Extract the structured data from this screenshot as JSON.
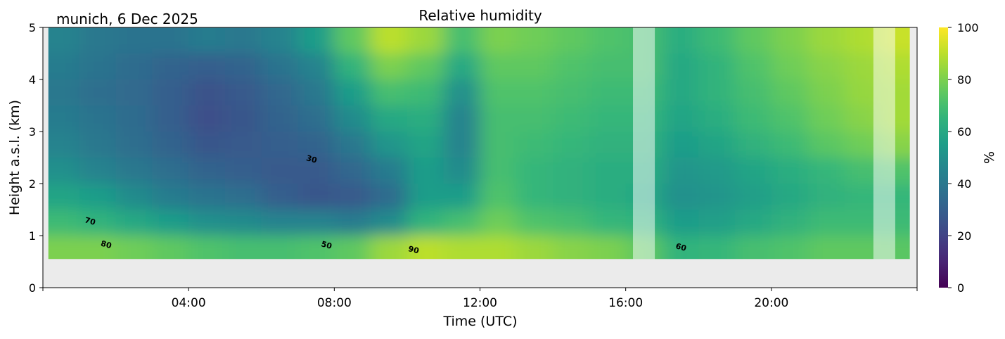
{
  "chart_data": {
    "type": "heatmap",
    "title": "Relative humidity",
    "subtitle": "munich, 6 Dec 2025",
    "xlabel": "Time (UTC)",
    "ylabel": "Height a.s.l. (km)",
    "xlim": [
      0,
      24
    ],
    "ylim": [
      0,
      5
    ],
    "xticks": [
      {
        "value": 4,
        "label": "04:00"
      },
      {
        "value": 8,
        "label": "08:00"
      },
      {
        "value": 12,
        "label": "12:00"
      },
      {
        "value": 16,
        "label": "16:00"
      },
      {
        "value": 20,
        "label": "20:00"
      }
    ],
    "yticks": [
      {
        "value": 0,
        "label": "0"
      },
      {
        "value": 1,
        "label": "1"
      },
      {
        "value": 2,
        "label": "2"
      },
      {
        "value": 3,
        "label": "3"
      },
      {
        "value": 4,
        "label": "4"
      },
      {
        "value": 5,
        "label": "5"
      }
    ],
    "colorbar": {
      "label": "%",
      "range": [
        0,
        100
      ],
      "colormap": "viridis",
      "ticks": [
        {
          "value": 0,
          "label": "0"
        },
        {
          "value": 20,
          "label": "20"
        },
        {
          "value": 40,
          "label": "40"
        },
        {
          "value": 60,
          "label": "60"
        },
        {
          "value": 80,
          "label": "80"
        },
        {
          "value": 100,
          "label": "100"
        }
      ]
    },
    "data_extent": {
      "time": [
        0.15,
        23.8
      ],
      "height": [
        0.55,
        5
      ]
    },
    "missing_periods": [
      [
        16.2,
        16.8
      ],
      [
        22.8,
        23.4
      ]
    ],
    "grid": false,
    "time_hours": [
      0.5,
      1.5,
      2.5,
      3.5,
      4.5,
      5.5,
      6.5,
      7.5,
      8.5,
      9.5,
      10.5,
      11.5,
      12.5,
      13.5,
      14.5,
      15.5,
      16.5,
      17.5,
      18.5,
      19.5,
      20.5,
      21.5,
      22.5,
      23.5
    ],
    "heights_km": [
      4.75,
      4.25,
      3.75,
      3.25,
      2.75,
      2.25,
      1.75,
      1.25,
      0.75
    ],
    "values": [
      [
        45,
        42,
        40,
        42,
        45,
        50,
        58,
        68,
        80
      ],
      [
        40,
        38,
        36,
        38,
        40,
        45,
        55,
        65,
        80
      ],
      [
        38,
        35,
        34,
        35,
        36,
        40,
        48,
        60,
        78
      ],
      [
        38,
        32,
        30,
        30,
        32,
        36,
        42,
        55,
        75
      ],
      [
        42,
        30,
        25,
        24,
        27,
        32,
        38,
        50,
        72
      ],
      [
        40,
        32,
        28,
        27,
        28,
        30,
        36,
        48,
        70
      ],
      [
        45,
        38,
        33,
        32,
        30,
        28,
        30,
        45,
        70
      ],
      [
        55,
        45,
        40,
        36,
        32,
        28,
        27,
        45,
        72
      ],
      [
        75,
        65,
        55,
        48,
        40,
        33,
        28,
        42,
        75
      ],
      [
        90,
        80,
        70,
        60,
        52,
        42,
        35,
        48,
        85
      ],
      [
        85,
        75,
        68,
        62,
        58,
        55,
        55,
        65,
        90
      ],
      [
        70,
        60,
        50,
        45,
        45,
        48,
        55,
        70,
        88
      ],
      [
        80,
        75,
        72,
        70,
        70,
        70,
        72,
        78,
        88
      ],
      [
        78,
        75,
        72,
        70,
        68,
        66,
        66,
        72,
        85
      ],
      [
        75,
        72,
        70,
        68,
        66,
        64,
        64,
        70,
        82
      ],
      [
        72,
        70,
        68,
        66,
        64,
        62,
        62,
        66,
        80
      ],
      [
        70,
        70,
        68,
        66,
        64,
        62,
        60,
        65,
        75
      ],
      [
        62,
        60,
        60,
        58,
        55,
        52,
        50,
        55,
        65
      ],
      [
        68,
        65,
        65,
        62,
        58,
        54,
        52,
        56,
        66
      ],
      [
        75,
        72,
        70,
        68,
        64,
        58,
        56,
        60,
        70
      ],
      [
        80,
        78,
        75,
        72,
        68,
        62,
        60,
        64,
        72
      ],
      [
        85,
        82,
        80,
        78,
        74,
        66,
        64,
        68,
        75
      ],
      [
        88,
        85,
        84,
        82,
        78,
        70,
        66,
        68,
        75
      ],
      [
        92,
        88,
        86,
        86,
        82,
        72,
        66,
        68,
        74
      ]
    ],
    "contour_labels": [
      {
        "text": "30",
        "time": 7.36,
        "height": 2.42
      },
      {
        "text": "70",
        "time": 1.28,
        "height": 1.23
      },
      {
        "text": "80",
        "time": 1.72,
        "height": 0.78
      },
      {
        "text": "50",
        "time": 7.77,
        "height": 0.77
      },
      {
        "text": "90",
        "time": 10.16,
        "height": 0.68
      },
      {
        "text": "60",
        "time": 17.5,
        "height": 0.73
      }
    ],
    "colors": {
      "background_axes": "#ebebeb",
      "missing_overlay": "#ffffff"
    }
  }
}
